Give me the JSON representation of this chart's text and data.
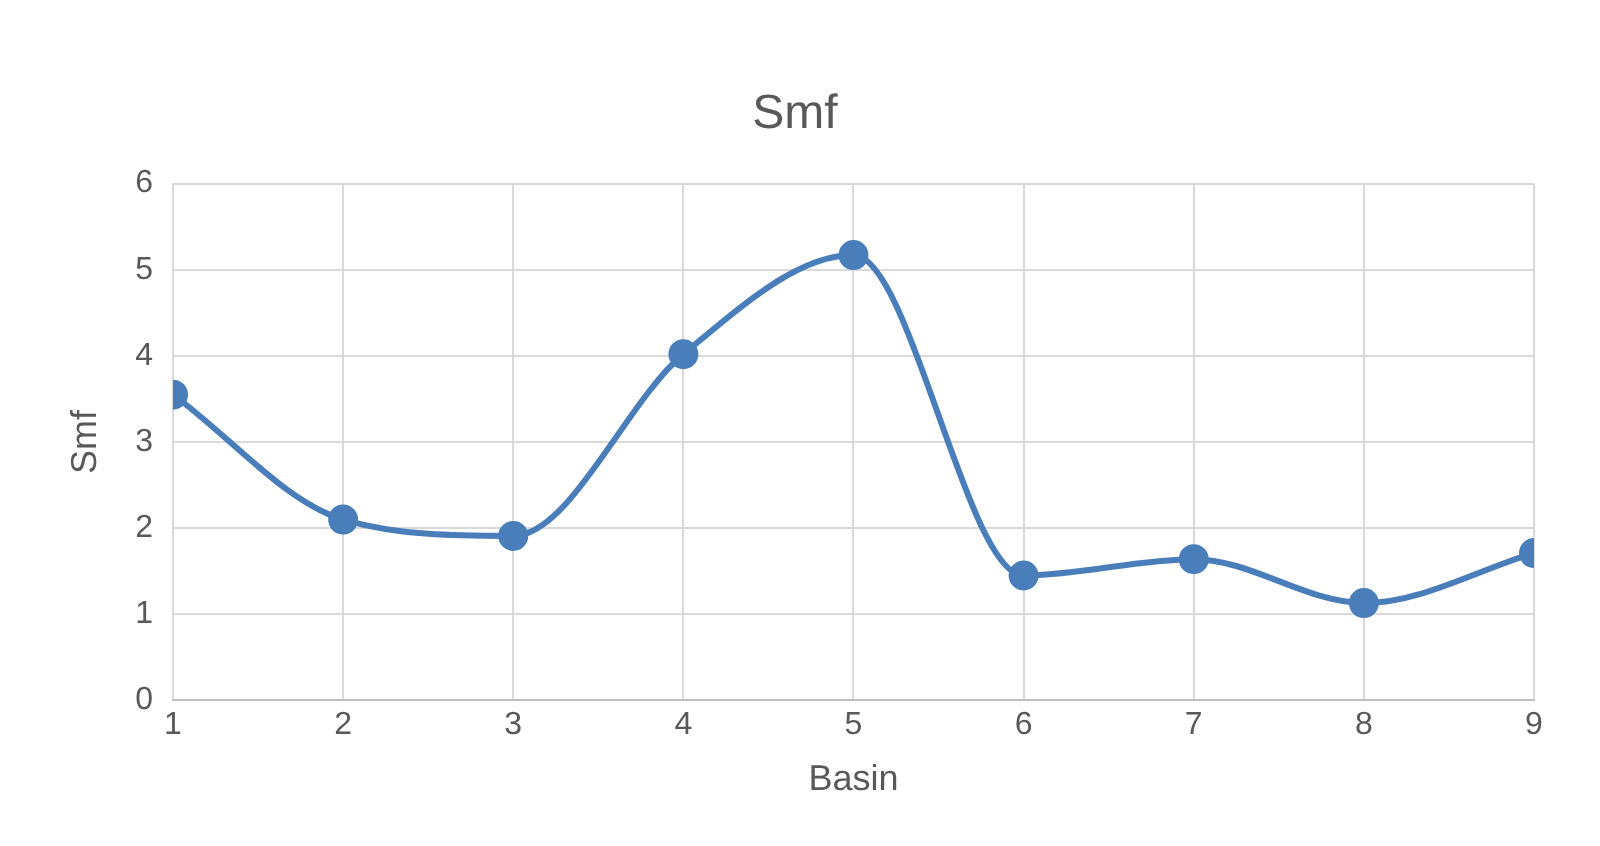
{
  "chart_data": {
    "type": "line",
    "title": "Smf",
    "xlabel": "Basin",
    "ylabel": "Smf",
    "x": [
      1,
      2,
      3,
      4,
      5,
      6,
      7,
      8,
      9
    ],
    "series": [
      {
        "color": "#4a7ebb",
        "values": [
          3.55,
          2.1,
          1.91,
          4.02,
          5.17,
          1.45,
          1.64,
          1.13,
          1.71
        ]
      }
    ],
    "xlim": [
      1,
      9
    ],
    "xticks": [
      1,
      2,
      3,
      4,
      5,
      6,
      7,
      8,
      9
    ],
    "ylim": [
      0,
      6
    ],
    "yticks": [
      0,
      1,
      2,
      3,
      4,
      5,
      6
    ],
    "grid": true,
    "marker": "circle",
    "line_style": "solid",
    "legend": false
  }
}
